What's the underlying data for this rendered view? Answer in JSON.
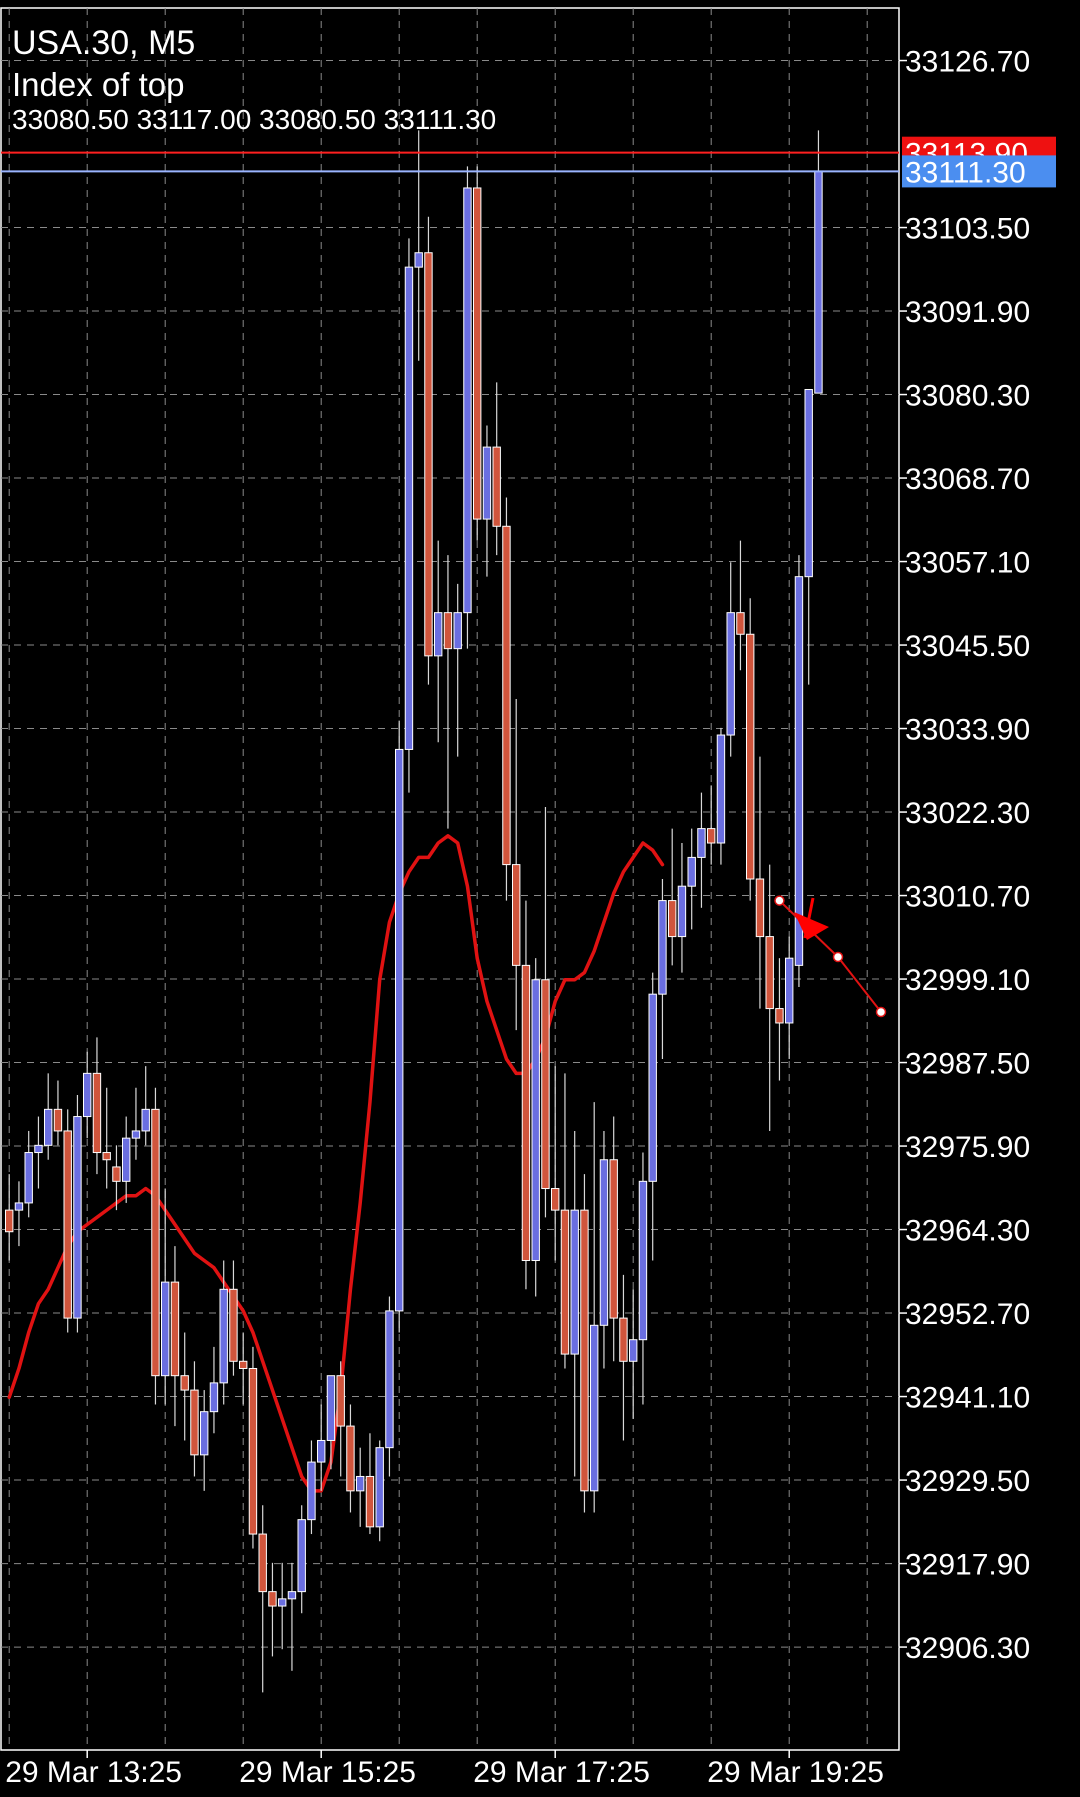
{
  "header": {
    "symbol_timeframe": "USA.30, M5",
    "indicator": "Index of top",
    "ohlc": "33080.50 33117.00 33080.50 33111.30"
  },
  "colors": {
    "background": "#000000",
    "grid": "#8a8a8a",
    "bull_body": "#6a6ee0",
    "bear_body": "#d0553c",
    "wick": "#d9d9d9",
    "indicator_line": "#e01212",
    "bid_line": "#9ab4ff",
    "ask_line": "#ff2020",
    "bid_label_bg": "#4b8ef0",
    "ask_label_bg": "#ee1111"
  },
  "icons": {
    "arrow": "red-pointer-arrow-icon"
  },
  "chart_data": {
    "type": "candlestick",
    "symbol": "USA.30",
    "timeframe": "M5",
    "y_ticks": [
      "33126.70",
      "33103.50",
      "33091.90",
      "33080.30",
      "33068.70",
      "33057.10",
      "33045.50",
      "33033.90",
      "33022.30",
      "33010.70",
      "32999.10",
      "32987.50",
      "32975.90",
      "32964.30",
      "32952.70",
      "32941.10",
      "32929.50",
      "32917.90",
      "32906.30"
    ],
    "ylim": [
      32892.0,
      33134.0
    ],
    "x_labels": [
      "29 Mar 13:25",
      "29 Mar 15:25",
      "29 Mar 17:25",
      "29 Mar 19:25"
    ],
    "x_label_bars": [
      8,
      32,
      56,
      80
    ],
    "bars_visible": 85,
    "bid_price": "33111.30",
    "ask_price": "33113.90",
    "candles": [
      {
        "o": 32967,
        "h": 32972,
        "l": 32960,
        "c": 32964
      },
      {
        "o": 32967,
        "h": 32971,
        "l": 32962,
        "c": 32968
      },
      {
        "o": 32968,
        "h": 32978,
        "l": 32966,
        "c": 32975
      },
      {
        "o": 32975,
        "h": 32980,
        "l": 32970,
        "c": 32976
      },
      {
        "o": 32976,
        "h": 32986,
        "l": 32974,
        "c": 32981
      },
      {
        "o": 32981,
        "h": 32985,
        "l": 32976,
        "c": 32978
      },
      {
        "o": 32978,
        "h": 32981,
        "l": 32950,
        "c": 32952
      },
      {
        "o": 32952,
        "h": 32983,
        "l": 32950,
        "c": 32980
      },
      {
        "o": 32980,
        "h": 32989,
        "l": 32977,
        "c": 32986
      },
      {
        "o": 32986,
        "h": 32991,
        "l": 32972,
        "c": 32975
      },
      {
        "o": 32975,
        "h": 32984,
        "l": 32970,
        "c": 32974
      },
      {
        "o": 32973,
        "h": 32976,
        "l": 32967,
        "c": 32971
      },
      {
        "o": 32971,
        "h": 32980,
        "l": 32968,
        "c": 32977
      },
      {
        "o": 32977,
        "h": 32984,
        "l": 32974,
        "c": 32978
      },
      {
        "o": 32978,
        "h": 32987,
        "l": 32976,
        "c": 32981
      },
      {
        "o": 32981,
        "h": 32984,
        "l": 32940,
        "c": 32944
      },
      {
        "o": 32944,
        "h": 32970,
        "l": 32940,
        "c": 32957
      },
      {
        "o": 32957,
        "h": 32962,
        "l": 32937,
        "c": 32944
      },
      {
        "o": 32944,
        "h": 32950,
        "l": 32935,
        "c": 32942
      },
      {
        "o": 32942,
        "h": 32946,
        "l": 32930,
        "c": 32933
      },
      {
        "o": 32933,
        "h": 32942,
        "l": 32928,
        "c": 32939
      },
      {
        "o": 32939,
        "h": 32948,
        "l": 32936,
        "c": 32943
      },
      {
        "o": 32943,
        "h": 32960,
        "l": 32940,
        "c": 32956
      },
      {
        "o": 32956,
        "h": 32960,
        "l": 32944,
        "c": 32946
      },
      {
        "o": 32946,
        "h": 32950,
        "l": 32940,
        "c": 32945
      },
      {
        "o": 32945,
        "h": 32948,
        "l": 32920,
        "c": 32922
      },
      {
        "o": 32922,
        "h": 32926,
        "l": 32900,
        "c": 32914
      },
      {
        "o": 32914,
        "h": 32918,
        "l": 32905,
        "c": 32912
      },
      {
        "o": 32912,
        "h": 32918,
        "l": 32906,
        "c": 32913
      },
      {
        "o": 32913,
        "h": 32918,
        "l": 32903,
        "c": 32914
      },
      {
        "o": 32914,
        "h": 32926,
        "l": 32911,
        "c": 32924
      },
      {
        "o": 32924,
        "h": 32935,
        "l": 32922,
        "c": 32932
      },
      {
        "o": 32932,
        "h": 32940,
        "l": 32928,
        "c": 32935
      },
      {
        "o": 32935,
        "h": 32943,
        "l": 32931,
        "c": 32944
      },
      {
        "o": 32944,
        "h": 32946,
        "l": 32930,
        "c": 32937
      },
      {
        "o": 32937,
        "h": 32940,
        "l": 32925,
        "c": 32928
      },
      {
        "o": 32928,
        "h": 32934,
        "l": 32923,
        "c": 32930
      },
      {
        "o": 32930,
        "h": 32936,
        "l": 32922,
        "c": 32923
      },
      {
        "o": 32923,
        "h": 32935,
        "l": 32921,
        "c": 32934
      },
      {
        "o": 32934,
        "h": 32955,
        "l": 32930,
        "c": 32953
      },
      {
        "o": 32953,
        "h": 33035,
        "l": 32950,
        "c": 33031
      },
      {
        "o": 33031,
        "h": 33102,
        "l": 33025,
        "c": 33098
      },
      {
        "o": 33098,
        "h": 33117,
        "l": 33085,
        "c": 33100
      },
      {
        "o": 33100,
        "h": 33105,
        "l": 33040,
        "c": 33044
      },
      {
        "o": 33044,
        "h": 33060,
        "l": 33032,
        "c": 33050
      },
      {
        "o": 33050,
        "h": 33058,
        "l": 33020,
        "c": 33045
      },
      {
        "o": 33045,
        "h": 33054,
        "l": 33030,
        "c": 33050
      },
      {
        "o": 33050,
        "h": 33112,
        "l": 33045,
        "c": 33109
      },
      {
        "o": 33109,
        "h": 33112,
        "l": 33060,
        "c": 33063
      },
      {
        "o": 33063,
        "h": 33076,
        "l": 33055,
        "c": 33073
      },
      {
        "o": 33073,
        "h": 33082,
        "l": 33058,
        "c": 33062
      },
      {
        "o": 33062,
        "h": 33066,
        "l": 33010,
        "c": 33015
      },
      {
        "o": 33015,
        "h": 33038,
        "l": 32992,
        "c": 33001
      },
      {
        "o": 33001,
        "h": 33010,
        "l": 32956,
        "c": 32960
      },
      {
        "o": 32960,
        "h": 33002,
        "l": 32955,
        "c": 32999
      },
      {
        "o": 32999,
        "h": 33023,
        "l": 32966,
        "c": 32970
      },
      {
        "o": 32970,
        "h": 32987,
        "l": 32960,
        "c": 32967
      },
      {
        "o": 32967,
        "h": 32986,
        "l": 32945,
        "c": 32947
      },
      {
        "o": 32947,
        "h": 32978,
        "l": 32930,
        "c": 32967
      },
      {
        "o": 32967,
        "h": 32972,
        "l": 32925,
        "c": 32928
      },
      {
        "o": 32928,
        "h": 32982,
        "l": 32925,
        "c": 32951
      },
      {
        "o": 32951,
        "h": 32978,
        "l": 32945,
        "c": 32974
      },
      {
        "o": 32974,
        "h": 32980,
        "l": 32946,
        "c": 32952
      },
      {
        "o": 32952,
        "h": 32958,
        "l": 32935,
        "c": 32946
      },
      {
        "o": 32946,
        "h": 32956,
        "l": 32938,
        "c": 32949
      },
      {
        "o": 32949,
        "h": 32975,
        "l": 32940,
        "c": 32971
      },
      {
        "o": 32971,
        "h": 33000,
        "l": 32960,
        "c": 32997
      },
      {
        "o": 32997,
        "h": 33013,
        "l": 32988,
        "c": 33010
      },
      {
        "o": 33010,
        "h": 33020,
        "l": 33001,
        "c": 33005
      },
      {
        "o": 33005,
        "h": 33018,
        "l": 33000,
        "c": 33012
      },
      {
        "o": 33012,
        "h": 33020,
        "l": 33006,
        "c": 33016
      },
      {
        "o": 33016,
        "h": 33025,
        "l": 33009,
        "c": 33020
      },
      {
        "o": 33020,
        "h": 33026,
        "l": 33015,
        "c": 33018
      },
      {
        "o": 33018,
        "h": 33034,
        "l": 33015,
        "c": 33033
      },
      {
        "o": 33033,
        "h": 33057,
        "l": 33030,
        "c": 33050
      },
      {
        "o": 33050,
        "h": 33060,
        "l": 33042,
        "c": 33047
      },
      {
        "o": 33047,
        "h": 33052,
        "l": 33010,
        "c": 33013
      },
      {
        "o": 33013,
        "h": 33030,
        "l": 32995,
        "c": 33005
      },
      {
        "o": 33005,
        "h": 33015,
        "l": 32978,
        "c": 32995
      },
      {
        "o": 32995,
        "h": 33002,
        "l": 32985,
        "c": 32993
      },
      {
        "o": 32993,
        "h": 33005,
        "l": 32988,
        "c": 33002
      },
      {
        "o": 33001,
        "h": 33058,
        "l": 32998,
        "c": 33055
      },
      {
        "o": 33055,
        "h": 33081,
        "l": 33040,
        "c": 33081
      },
      {
        "o": 33080.5,
        "h": 33117,
        "l": 33080.5,
        "c": 33111.3
      }
    ],
    "indicator_line": [
      32941,
      32945,
      32950,
      32954,
      32956,
      32959,
      32962,
      32964,
      32965,
      32966,
      32967,
      32968,
      32969,
      32969,
      32970,
      32969,
      32967,
      32965,
      32963,
      32961,
      32960,
      32959,
      32957,
      32955,
      32953,
      32950,
      32946,
      32942,
      32938,
      32934,
      32930,
      32928,
      32928,
      32932,
      32942,
      32956,
      32968,
      32982,
      32999,
      33007,
      33011,
      33014,
      33016,
      33016,
      33018,
      33019,
      33018,
      33012,
      33002,
      32996,
      32992,
      32988,
      32986,
      32986,
      32988,
      32991,
      32996,
      32999,
      32999,
      33000,
      33003,
      33007,
      33011,
      33014,
      33016,
      33018,
      33017,
      33015
    ]
  }
}
